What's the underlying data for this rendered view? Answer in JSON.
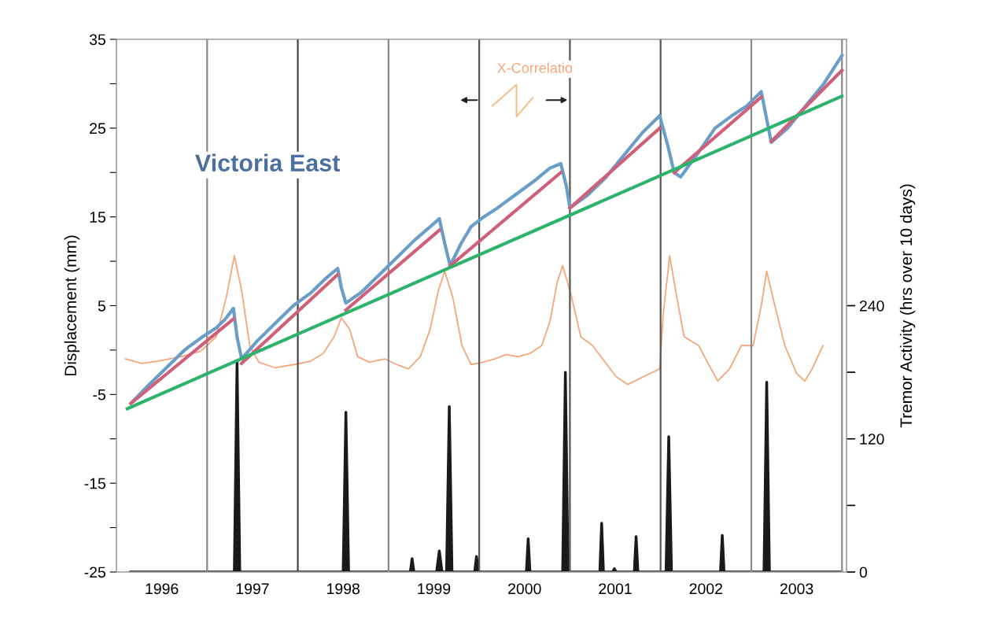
{
  "chart_data": {
    "type": "line",
    "xlabel": null,
    "ylabel": "Displacement (mm)",
    "y2label": "Tremor Activity (hrs over 10 days)",
    "annotations": [
      "Victoria East",
      "X-Correlatio"
    ],
    "xlim": [
      1996.0,
      2004.05
    ],
    "xticks": [
      {
        "value": 1996.5,
        "label": "1996"
      },
      {
        "value": 1997.5,
        "label": "1997"
      },
      {
        "value": 1998.5,
        "label": "1998"
      },
      {
        "value": 1999.5,
        "label": "1999"
      },
      {
        "value": 2000.5,
        "label": "2000"
      },
      {
        "value": 2001.5,
        "label": "2001"
      },
      {
        "value": 2002.5,
        "label": "2002"
      },
      {
        "value": 2003.5,
        "label": "2003"
      }
    ],
    "ylim": [
      -25,
      35
    ],
    "yticks": [
      -25,
      {
        "value": -20,
        "label": null
      },
      -15,
      {
        "value": -10,
        "label": null
      },
      -5,
      {
        "value": 0,
        "label": null
      },
      5,
      {
        "value": 10,
        "label": null
      },
      15,
      {
        "value": 20,
        "label": null
      },
      25,
      {
        "value": 30,
        "label": null
      },
      35
    ],
    "y2lim": [
      0,
      480
    ],
    "y2ticks": [
      0,
      {
        "value": 60,
        "label": null
      },
      120,
      {
        "value": 180,
        "label": null
      },
      240
    ],
    "grid": false,
    "legend": false,
    "ref_lines": [
      {
        "axis": "x",
        "value": 1997,
        "color": "#8a8a8a"
      },
      {
        "axis": "x",
        "value": 1998,
        "color": "#444444"
      },
      {
        "axis": "x",
        "value": 1999,
        "color": "#8a8a8a"
      },
      {
        "axis": "x",
        "value": 2000,
        "color": "#555555"
      },
      {
        "axis": "x",
        "value": 2001,
        "color": "#555555"
      },
      {
        "axis": "x",
        "value": 2002,
        "color": "#555555"
      },
      {
        "axis": "x",
        "value": 2003,
        "color": "#8a8a8a"
      },
      {
        "axis": "x",
        "value": 2004,
        "color": "#8a8a8a"
      }
    ],
    "series": [
      {
        "type": "area",
        "axis": "y2",
        "color": "#1a1a1a",
        "x": [
          1996.15,
          1997.3,
          1997.33,
          1997.36,
          1998.5,
          1998.53,
          1998.56,
          1999.24,
          1999.26,
          1999.28,
          1999.53,
          1999.56,
          1999.59,
          1999.64,
          1999.67,
          1999.7,
          1999.95,
          1999.97,
          1999.99,
          2000.52,
          2000.54,
          2000.56,
          2000.92,
          2000.95,
          2000.98,
          2001.33,
          2001.35,
          2001.37,
          2001.47,
          2001.49,
          2001.51,
          2001.71,
          2001.73,
          2001.75,
          2002.06,
          2002.09,
          2002.12,
          2002.66,
          2002.68,
          2002.7,
          2003.14,
          2003.17,
          2003.2,
          2004.0
        ],
        "values": [
          0,
          0,
          190,
          0,
          0,
          144,
          0,
          0,
          12,
          0,
          0,
          19,
          0,
          0,
          149,
          0,
          0,
          14,
          0,
          0,
          30,
          0,
          0,
          180,
          0,
          0,
          44,
          0,
          0,
          3,
          0,
          0,
          32,
          0,
          0,
          122,
          0,
          0,
          33,
          0,
          0,
          171,
          0,
          0
        ]
      },
      {
        "axis": "y2",
        "color": "#f4a77a",
        "x": [
          1996.1,
          1996.28,
          1996.45,
          1996.71,
          1996.93,
          1997.1,
          1997.21,
          1997.3,
          1997.38,
          1997.47,
          1997.57,
          1997.75,
          1997.96,
          1998.14,
          1998.28,
          1998.4,
          1998.48,
          1998.57,
          1998.66,
          1998.79,
          1998.96,
          1999.09,
          1999.22,
          1999.35,
          1999.46,
          1999.55,
          1999.62,
          1999.71,
          1999.81,
          1999.91,
          2000.04,
          2000.17,
          2000.3,
          2000.43,
          2000.56,
          2000.69,
          2000.78,
          2000.86,
          2000.92,
          2001.01,
          2001.12,
          2001.25,
          2001.38,
          2001.51,
          2001.64,
          2001.81,
          2001.99,
          2002.03,
          2002.1,
          2002.18,
          2002.26,
          2002.42,
          2002.51,
          2002.63,
          2002.76,
          2002.89,
          2003.02,
          2003.11,
          2003.17,
          2003.26,
          2003.37,
          2003.5,
          2003.59,
          2003.67,
          2003.79
        ],
        "values": [
          192,
          188,
          190,
          194,
          199,
          212,
          247,
          285,
          254,
          204,
          189,
          184,
          187,
          190,
          197,
          212,
          229,
          219,
          194,
          189,
          192,
          187,
          183,
          194,
          219,
          254,
          271,
          247,
          204,
          187,
          189,
          192,
          196,
          194,
          197,
          204,
          226,
          261,
          276,
          251,
          212,
          204,
          190,
          176,
          169,
          176,
          183,
          233,
          285,
          247,
          212,
          204,
          190,
          172,
          183,
          204,
          204,
          240,
          271,
          240,
          204,
          179,
          172,
          183,
          204
        ]
      },
      {
        "color": "#6a9ec9",
        "x": [
          1996.16,
          1996.35,
          1996.55,
          1996.75,
          1996.95,
          1997.1,
          1997.2,
          1997.29,
          1997.33,
          1997.38,
          1997.55,
          1997.75,
          1997.95,
          1998.15,
          1998.3,
          1998.44,
          1998.48,
          1998.53,
          1998.7,
          1998.9,
          1999.1,
          1999.3,
          1999.45,
          1999.56,
          1999.62,
          1999.68,
          1999.8,
          1999.91,
          2000.05,
          2000.2,
          2000.4,
          2000.6,
          2000.78,
          2000.9,
          2000.96,
          2001.0,
          2001.2,
          2001.4,
          2001.6,
          2001.8,
          2001.99,
          2002.08,
          2002.15,
          2002.22,
          2002.4,
          2002.6,
          2002.8,
          2002.95,
          2003.11,
          2003.17,
          2003.22,
          2003.4,
          2003.6,
          2003.8,
          2004.0
        ],
        "values": [
          -6.0,
          -4.0,
          -2.0,
          0.0,
          1.5,
          2.5,
          3.5,
          4.7,
          1.5,
          -1.0,
          1.0,
          3.0,
          5.0,
          6.5,
          8.0,
          9.2,
          7.0,
          5.3,
          6.5,
          8.5,
          10.5,
          12.5,
          13.8,
          14.8,
          12.0,
          9.5,
          12.0,
          13.9,
          15.0,
          16.0,
          17.5,
          19.0,
          20.5,
          21.0,
          18.5,
          16.0,
          17.5,
          19.5,
          22.0,
          24.5,
          26.4,
          23.0,
          20.0,
          19.5,
          22.0,
          25.0,
          26.5,
          27.5,
          29.1,
          26.0,
          23.4,
          25.0,
          27.5,
          30.0,
          33.2
        ]
      },
      {
        "color": "#d0607a",
        "x": [
          1996.16,
          1997.29,
          1997.33,
          1997.38,
          1998.44,
          1998.48,
          1998.53,
          1999.56,
          1999.62,
          1999.68,
          2000.9,
          2000.95,
          2001.0,
          2001.99,
          2002.08,
          2002.15,
          2003.11,
          2003.17,
          2003.22,
          2004.0
        ],
        "values": [
          -6.0,
          3.5,
          null,
          -1.5,
          8.5,
          null,
          4.5,
          13.5,
          null,
          9.5,
          20.0,
          null,
          16.0,
          25.0,
          null,
          20.0,
          28.5,
          null,
          23.5,
          31.5
        ]
      },
      {
        "color": "#2db36b",
        "x": [
          1996.12,
          2004.0
        ],
        "values": [
          -6.6,
          28.6
        ]
      }
    ]
  }
}
